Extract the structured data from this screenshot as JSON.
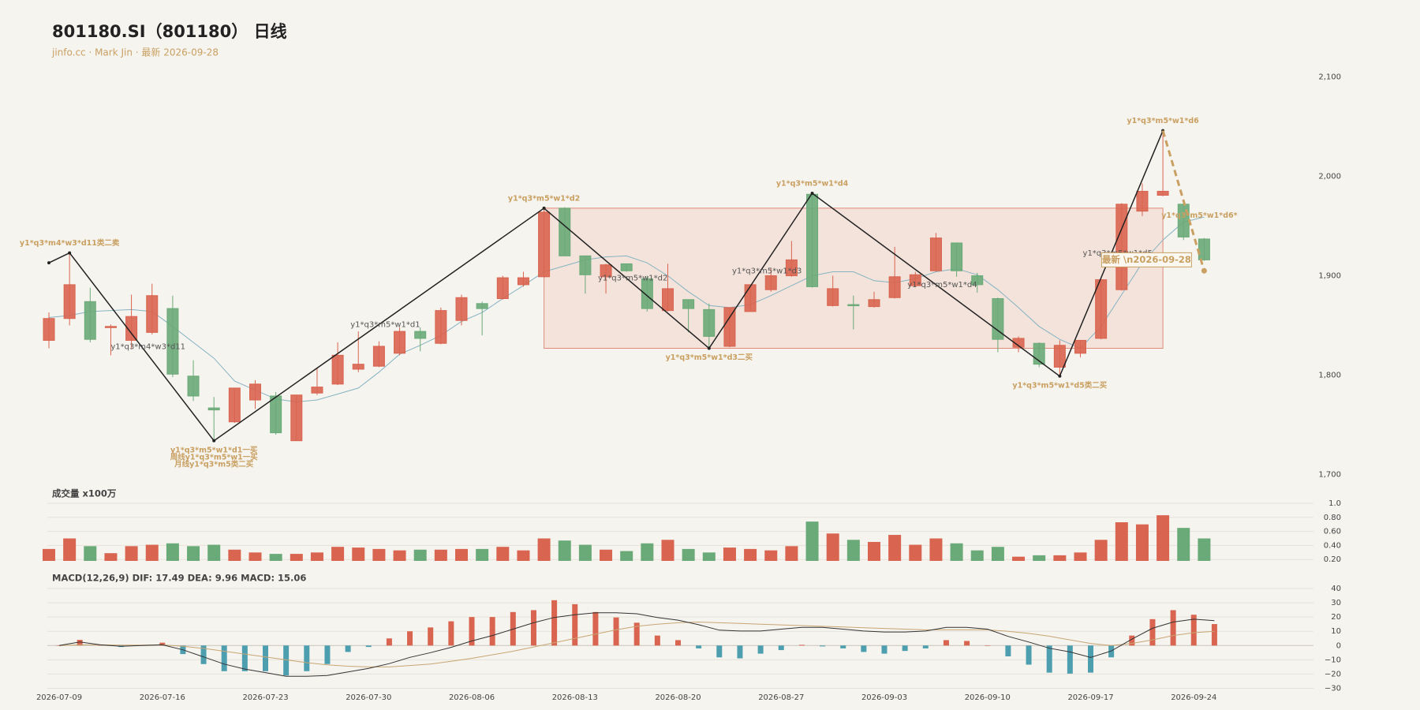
{
  "chart_data": [
    {
      "type": "candlestick",
      "title": "801180.SI（801180） 日线",
      "subtitle": "jinfo.cc · Mark Jin · 最新 2026-09-28",
      "up_color": "#d9644f",
      "down_color": "#6aaa78",
      "open": [
        1835,
        1857,
        1874,
        1848,
        1835,
        1843,
        1867,
        1799,
        1767,
        1753,
        1775,
        1779,
        1734,
        1782,
        1791,
        1806,
        1809,
        1822,
        1844,
        1832,
        1855,
        1872,
        1877,
        1891,
        1899,
        1968,
        1920,
        1899,
        1912,
        1897,
        1865,
        1876,
        1866,
        1829,
        1864,
        1886,
        1900,
        1982,
        1870,
        1871,
        1869,
        1878,
        1890,
        1905,
        1933,
        1900,
        1877,
        1828,
        1832,
        1808,
        1822,
        1837,
        1886,
        1965,
        1981,
        1972,
        1937
      ],
      "close": [
        1857,
        1891,
        1836,
        1849,
        1859,
        1880,
        1801,
        1779,
        1765,
        1787,
        1791,
        1742,
        1780,
        1788,
        1820,
        1811,
        1829,
        1844,
        1837,
        1865,
        1878,
        1867,
        1898,
        1898,
        1964,
        1920,
        1901,
        1911,
        1905,
        1867,
        1887,
        1867,
        1839,
        1868,
        1891,
        1900,
        1916,
        1889,
        1887,
        1870,
        1876,
        1899,
        1901,
        1938,
        1905,
        1891,
        1836,
        1837,
        1811,
        1830,
        1835,
        1896,
        1972,
        1985,
        1985,
        1939,
        1916
      ],
      "high": [
        1863,
        1923,
        1888,
        1851,
        1881,
        1892,
        1880,
        1815,
        1778,
        1787,
        1795,
        1783,
        1780,
        1807,
        1833,
        1844,
        1834,
        1848,
        1848,
        1868,
        1881,
        1874,
        1900,
        1904,
        1968,
        1969,
        1920,
        1912,
        1912,
        1900,
        1912,
        1876,
        1872,
        1868,
        1891,
        1908,
        1935,
        1983,
        1900,
        1880,
        1884,
        1929,
        1904,
        1943,
        1933,
        1903,
        1878,
        1839,
        1833,
        1835,
        1835,
        1897,
        1973,
        1993,
        2046,
        1973,
        1938
      ],
      "low": [
        1827,
        1850,
        1833,
        1820,
        1827,
        1841,
        1798,
        1774,
        1734,
        1752,
        1766,
        1740,
        1734,
        1780,
        1790,
        1803,
        1808,
        1820,
        1824,
        1831,
        1850,
        1840,
        1876,
        1889,
        1898,
        1920,
        1882,
        1882,
        1904,
        1864,
        1864,
        1843,
        1827,
        1828,
        1864,
        1884,
        1899,
        1888,
        1869,
        1846,
        1868,
        1877,
        1889,
        1904,
        1899,
        1883,
        1823,
        1823,
        1808,
        1799,
        1818,
        1836,
        1885,
        1960,
        1980,
        1936,
        1915
      ],
      "ma": {
        "color": "#86b3c2",
        "values": [
          1858,
          1860,
          1864,
          1865,
          1866,
          1864,
          1849,
          1833,
          1817,
          1794,
          1785,
          1776,
          1773,
          1775,
          1781,
          1787,
          1803,
          1821,
          1830,
          1840,
          1854,
          1863,
          1877,
          1890,
          1904,
          1910,
          1916,
          1919,
          1920,
          1913,
          1900,
          1884,
          1870,
          1868,
          1871,
          1880,
          1890,
          1900,
          1904,
          1904,
          1895,
          1893,
          1897,
          1904,
          1907,
          1901,
          1886,
          1868,
          1849,
          1836,
          1827,
          1849,
          1881,
          1913,
          1936,
          1954,
          1959
        ]
      },
      "pivots": {
        "color": "#222222",
        "x": [
          0,
          1,
          8,
          24,
          32,
          37,
          49,
          54
        ],
        "values": [
          1913,
          1923,
          1734,
          1968,
          1827,
          1983,
          1799,
          2046
        ]
      },
      "pivot_labels": [
        null,
        "y1*q3*m4*w3*d11类二卖",
        "y1*q3*m5*w1*d1一买\n周线y1*q3*m5*w1一买\n月线y1*q3*m5类二买",
        "y1*q3*m5*w1*d2",
        "y1*q3*m5*w1*d3二买",
        "y1*q3*m5*w1*d4",
        "y1*q3*m5*w1*d5类二买",
        "y1*q3*m5*w1*d6"
      ],
      "segment_labels": [
        null,
        "y1*q3*m4*w3*d11",
        "y1*q3*m5*w1*d1",
        "y1*q3*m5*w1*d2",
        "y1*q3*m5*w1*d3",
        "y1*q3*m5*w1*d4",
        "y1*q3*m5*w1*d5"
      ],
      "forecast": {
        "color": "#c9a062",
        "x": [
          54,
          56
        ],
        "values": [
          2046,
          1905
        ],
        "label": "y1*q3*m5*w1*d6*"
      },
      "zone": {
        "fill": "#f2ded6",
        "stroke": "#e08a78",
        "x": [
          24,
          54
        ],
        "values": [
          1827,
          1968
        ]
      },
      "latest_label": "最新 \\n2026-09-28",
      "ylim": [
        1700,
        2100
      ],
      "yticks": [
        {
          "value": 1700,
          "label": "1,700"
        },
        {
          "value": 1800,
          "label": "1,800"
        },
        {
          "value": 1900,
          "label": "1,900"
        },
        {
          "value": 2000,
          "label": "2,000"
        },
        {
          "value": 2100,
          "label": "2,100"
        }
      ],
      "grid": false
    },
    {
      "type": "bar",
      "title": "成交量 x100万",
      "values": [
        0.35,
        0.5,
        0.39,
        0.29,
        0.39,
        0.41,
        0.43,
        0.39,
        0.41,
        0.34,
        0.3,
        0.28,
        0.28,
        0.3,
        0.38,
        0.37,
        0.35,
        0.33,
        0.34,
        0.34,
        0.35,
        0.35,
        0.38,
        0.33,
        0.5,
        0.47,
        0.41,
        0.34,
        0.32,
        0.43,
        0.48,
        0.35,
        0.3,
        0.37,
        0.35,
        0.33,
        0.39,
        0.74,
        0.57,
        0.48,
        0.45,
        0.55,
        0.41,
        0.5,
        0.43,
        0.33,
        0.38,
        0.24,
        0.26,
        0.26,
        0.3,
        0.48,
        0.73,
        0.7,
        0.83,
        0.65,
        0.5
      ],
      "ylim": [
        0.18,
        1
      ],
      "yticks": [
        {
          "value": 0.2,
          "label": "0.20"
        },
        {
          "value": 0.4,
          "label": "0.40"
        },
        {
          "value": 0.6,
          "label": "0.60"
        },
        {
          "value": 0.8,
          "label": "0.80"
        },
        {
          "value": 1,
          "label": "1.0"
        }
      ],
      "grid": true
    },
    {
      "type": "macd",
      "title": "MACD(12,26,9) DIF: 17.49 DEA: 9.96 MACD: 15.06",
      "categories": [
        "2026-07-09",
        null,
        null,
        null,
        null,
        "2026-07-16",
        null,
        null,
        null,
        null,
        "2026-07-23",
        null,
        null,
        null,
        null,
        "2026-07-30",
        null,
        null,
        null,
        null,
        "2026-08-06",
        null,
        null,
        null,
        null,
        "2026-08-13",
        null,
        null,
        null,
        null,
        "2026-08-20",
        null,
        null,
        null,
        null,
        "2026-08-27",
        null,
        null,
        null,
        null,
        "2026-09-03",
        null,
        null,
        null,
        null,
        "2026-09-10",
        null,
        null,
        null,
        null,
        "2026-09-17",
        null,
        null,
        null,
        null,
        "2026-09-24",
        null
      ],
      "up_color": "#d9644f",
      "down_color": "#4d9fb0",
      "values": [
        0,
        4,
        0.5,
        -1,
        0.3,
        2,
        -6,
        -13,
        -18,
        -18,
        -18,
        -21,
        -18,
        -13,
        -4.5,
        -1,
        5,
        10,
        12.7,
        17,
        20,
        20,
        23.5,
        24.8,
        31.8,
        29,
        23.5,
        19.7,
        16,
        7,
        3.8,
        -2,
        -8.3,
        -9,
        -5.7,
        -3.2,
        0.5,
        -0.6,
        -2,
        -4.5,
        -5.7,
        -3.8,
        -2,
        3.8,
        3.2,
        0,
        -7.6,
        -13.4,
        -19,
        -19.7,
        -19,
        -8.3,
        7,
        18.5,
        24.8,
        21.6,
        15.06
      ],
      "dif": {
        "color": "#333333",
        "values": [
          0,
          2.5,
          0.5,
          -0.5,
          0,
          0.5,
          -3,
          -8,
          -13,
          -16.5,
          -19,
          -21.6,
          -21.6,
          -21,
          -18.5,
          -16,
          -12.7,
          -8.3,
          -5,
          -1.3,
          3.2,
          7,
          11.5,
          16,
          19.7,
          21.6,
          23,
          23,
          22.3,
          19.7,
          17.8,
          14.6,
          10.8,
          10.2,
          10.2,
          11.5,
          12.7,
          12.7,
          11.5,
          10.2,
          9.5,
          9.5,
          10.2,
          12.7,
          12.7,
          11.5,
          6.4,
          2.5,
          -1.9,
          -4.5,
          -8.3,
          -3.8,
          4.5,
          12.1,
          16.5,
          18.5,
          17.49
        ]
      },
      "dea": {
        "color": "#c8a574",
        "values": [
          0,
          0.5,
          0.5,
          0.3,
          0.3,
          0.5,
          -0.5,
          -2,
          -4,
          -6,
          -8,
          -10,
          -12,
          -13.5,
          -14.5,
          -15,
          -15,
          -14,
          -13,
          -11,
          -9,
          -6.5,
          -4,
          -1,
          2,
          5,
          8,
          11,
          13.5,
          15,
          16,
          16.5,
          16,
          15.5,
          15,
          14.5,
          14,
          13.5,
          13,
          12.5,
          12,
          11.5,
          11,
          11,
          11,
          11,
          10,
          8.5,
          6.5,
          4,
          1.5,
          0,
          1.5,
          4,
          7,
          9,
          9.96
        ]
      },
      "ylim": [
        -30,
        40
      ],
      "yticks": [
        {
          "value": -30,
          "label": "−30"
        },
        {
          "value": -20,
          "label": "−20"
        },
        {
          "value": -10,
          "label": "−10"
        },
        0,
        10,
        20,
        30,
        40
      ],
      "grid": true
    }
  ]
}
